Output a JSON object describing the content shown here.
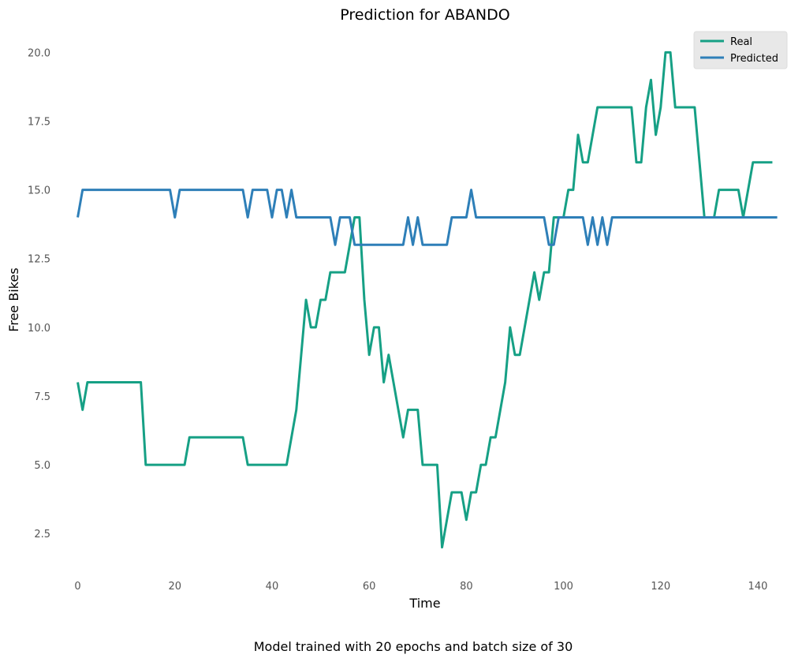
{
  "chart_data": {
    "type": "line",
    "title": "Prediction for ABANDO",
    "xlabel": "Time",
    "ylabel": "Free Bikes",
    "caption": "Model trained with 20 epochs and batch size of 30",
    "xlim": [
      -2.2,
      145.2
    ],
    "ylim": [
      1.1,
      20.9
    ],
    "xticks": [
      0,
      20,
      40,
      60,
      80,
      100,
      120,
      140
    ],
    "yticks": [
      2.5,
      5.0,
      7.5,
      10.0,
      12.5,
      15.0,
      17.5,
      20.0
    ],
    "ytick_labels": [
      "2.5",
      "5.0",
      "7.5",
      "10.0",
      "12.5",
      "15.0",
      "17.5",
      "20.0"
    ],
    "grid": false,
    "legend": "top-right",
    "series": [
      {
        "name": "Real",
        "color": "#16a085",
        "values": [
          8,
          7,
          8,
          8,
          8,
          8,
          8,
          8,
          8,
          8,
          8,
          8,
          8,
          8,
          5,
          5,
          5,
          5,
          5,
          5,
          5,
          5,
          5,
          6,
          6,
          6,
          6,
          6,
          6,
          6,
          6,
          6,
          6,
          6,
          6,
          5,
          5,
          5,
          5,
          5,
          5,
          5,
          5,
          5,
          6,
          7,
          9,
          11,
          10,
          10,
          11,
          11,
          12,
          12,
          12,
          12,
          13,
          14,
          14,
          11,
          9,
          10,
          10,
          8,
          9,
          8,
          7,
          6,
          7,
          7,
          7,
          5,
          5,
          5,
          5,
          2,
          3,
          4,
          4,
          4,
          3,
          4,
          4,
          5,
          5,
          6,
          6,
          7,
          8,
          10,
          9,
          9,
          10,
          11,
          12,
          11,
          12,
          12,
          14,
          14,
          14,
          15,
          15,
          17,
          16,
          16,
          17,
          18,
          18,
          18,
          18,
          18,
          18,
          18,
          18,
          16,
          16,
          18,
          19,
          17,
          18,
          20,
          20,
          18,
          18,
          18,
          18,
          18,
          16,
          14,
          14,
          14,
          15,
          15,
          15,
          15,
          15,
          14,
          15,
          16,
          16,
          16,
          16,
          16
        ]
      },
      {
        "name": "Predicted",
        "color": "#2e7fb8",
        "values": [
          14,
          15,
          15,
          15,
          15,
          15,
          15,
          15,
          15,
          15,
          15,
          15,
          15,
          15,
          15,
          15,
          15,
          15,
          15,
          15,
          14,
          15,
          15,
          15,
          15,
          15,
          15,
          15,
          15,
          15,
          15,
          15,
          15,
          15,
          15,
          14,
          15,
          15,
          15,
          15,
          14,
          15,
          15,
          14,
          15,
          14,
          14,
          14,
          14,
          14,
          14,
          14,
          14,
          13,
          14,
          14,
          14,
          13,
          13,
          13,
          13,
          13,
          13,
          13,
          13,
          13,
          13,
          13,
          14,
          13,
          14,
          13,
          13,
          13,
          13,
          13,
          13,
          14,
          14,
          14,
          14,
          15,
          14,
          14,
          14,
          14,
          14,
          14,
          14,
          14,
          14,
          14,
          14,
          14,
          14,
          14,
          14,
          13,
          13,
          14,
          14,
          14,
          14,
          14,
          14,
          13,
          14,
          13,
          14,
          13,
          14,
          14,
          14,
          14,
          14,
          14,
          14,
          14,
          14,
          14,
          14,
          14,
          14,
          14,
          14,
          14,
          14,
          14,
          14,
          14,
          14,
          14,
          14,
          14,
          14,
          14,
          14,
          14,
          14,
          14,
          14,
          14,
          14,
          14,
          14
        ]
      }
    ]
  }
}
